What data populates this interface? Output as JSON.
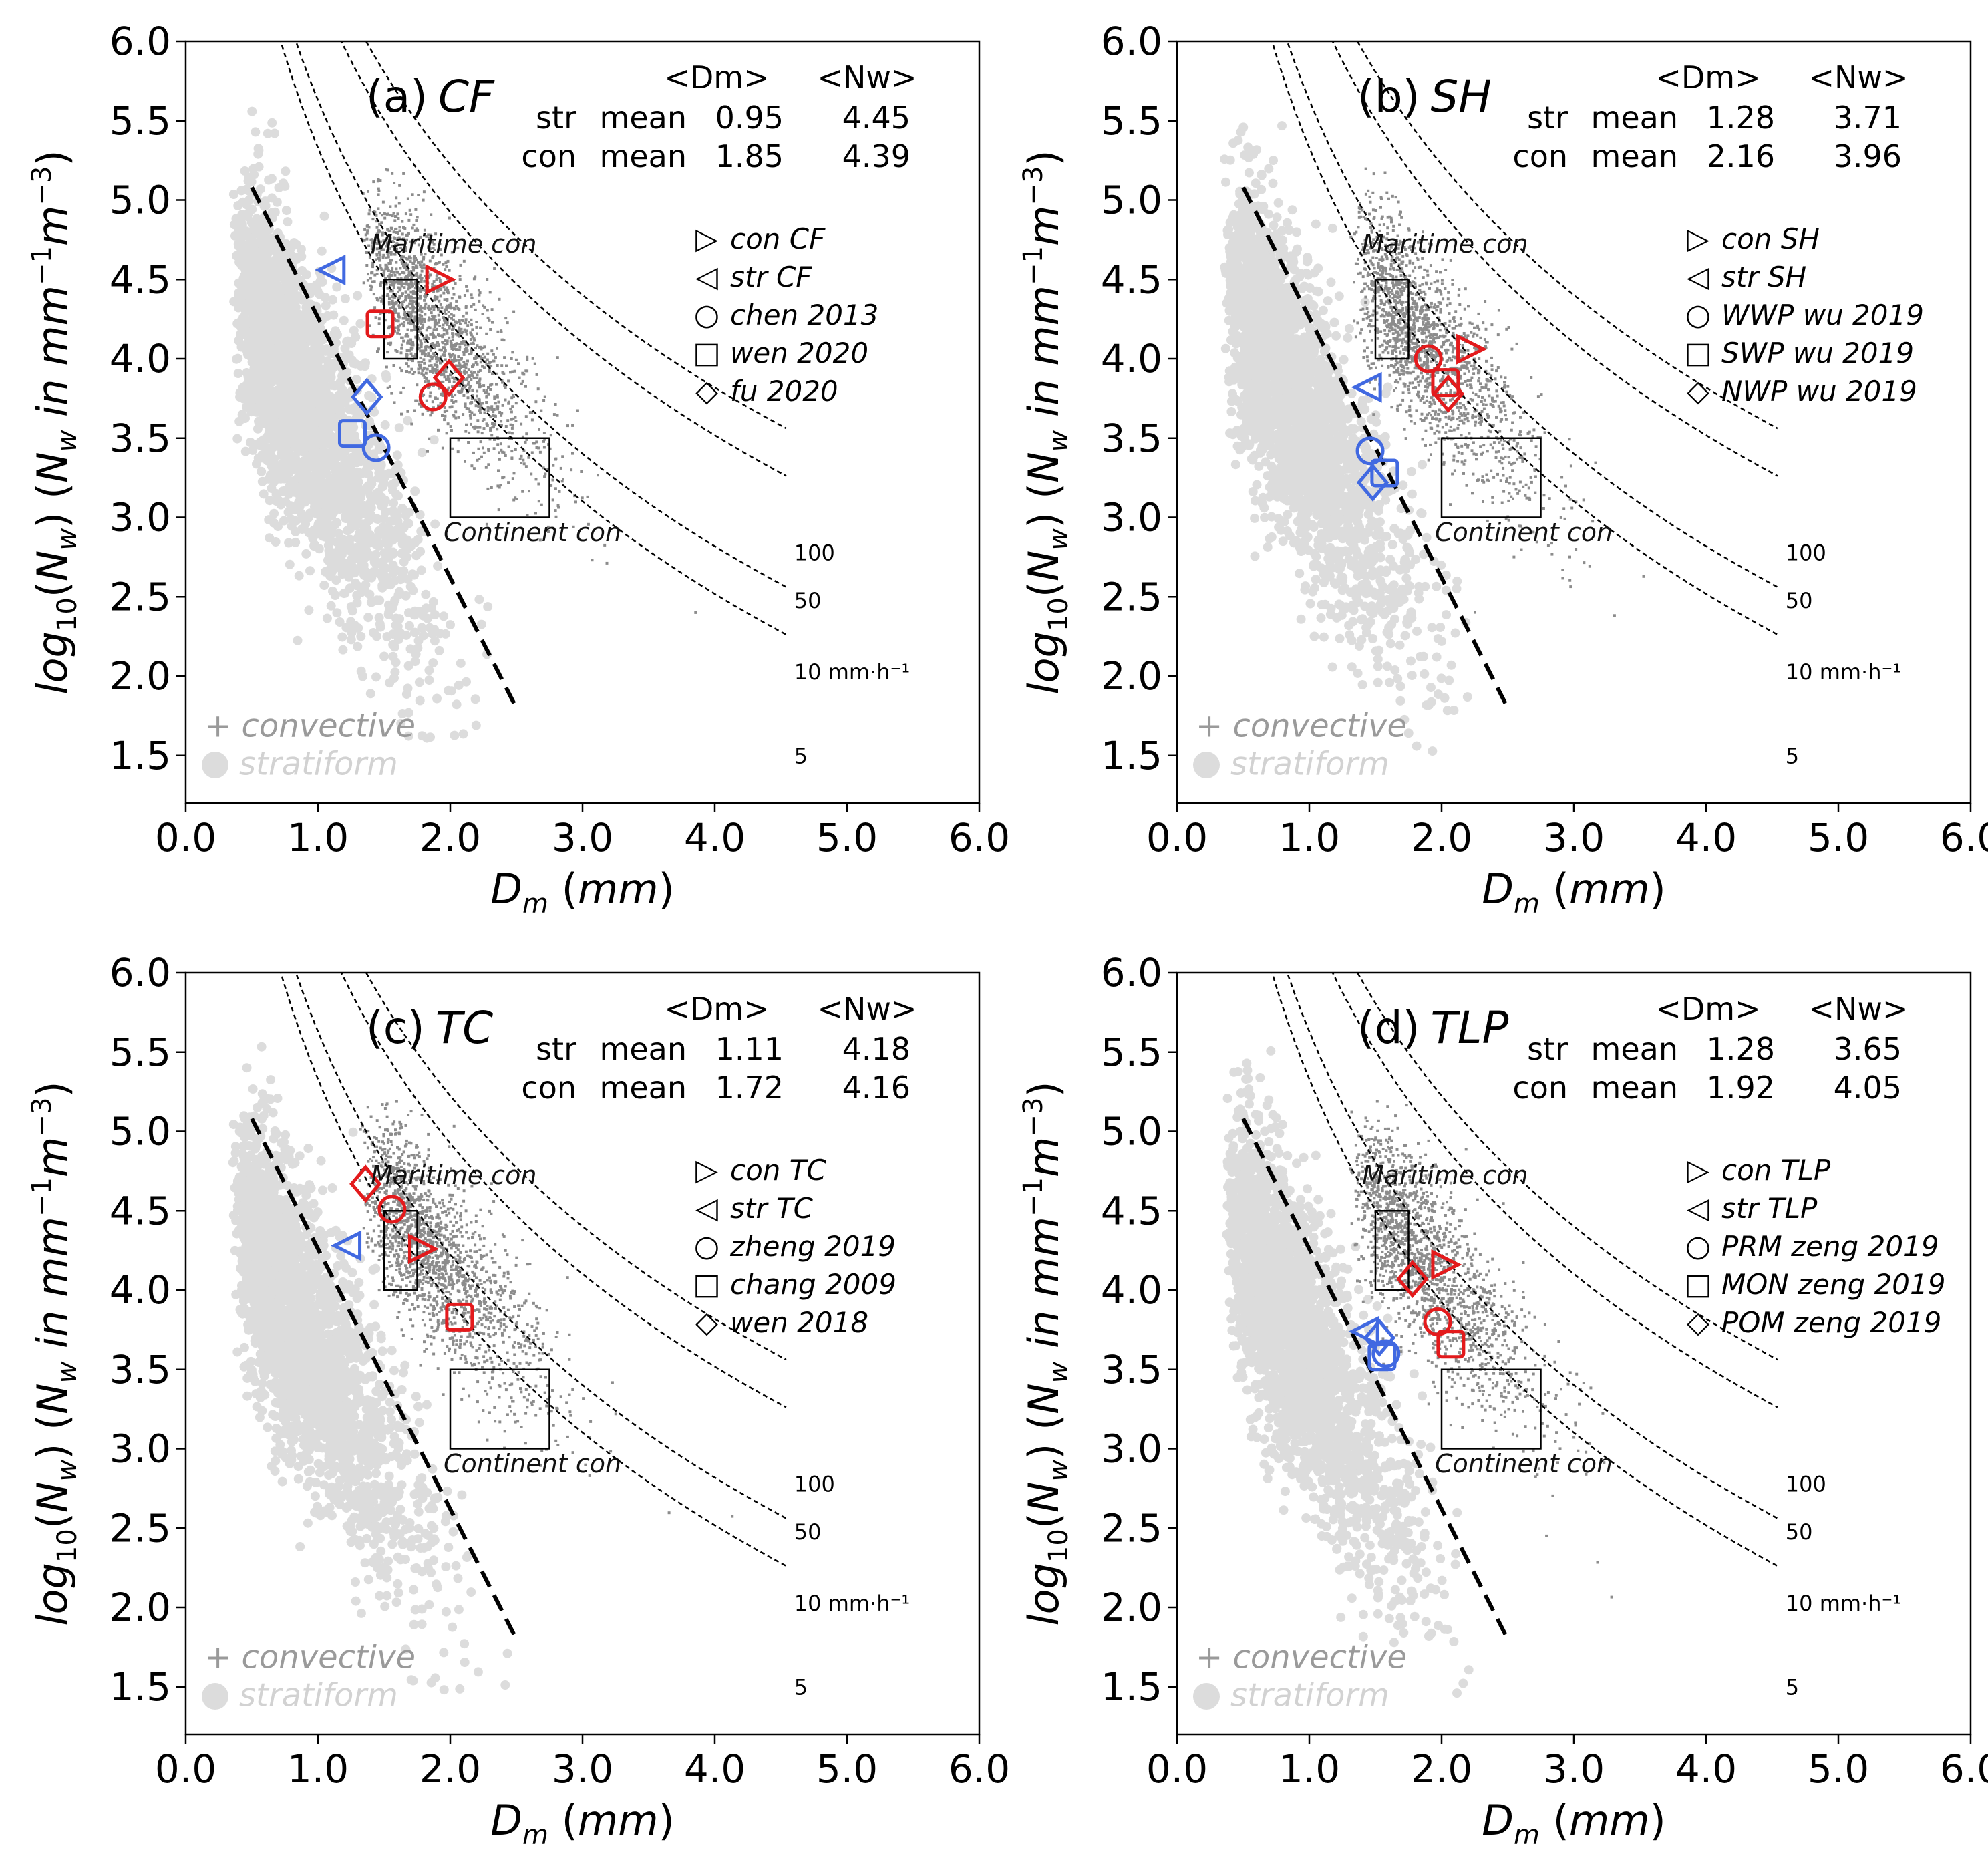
{
  "chart_data": [
    {
      "type": "scatter",
      "panel": "(a)",
      "title": "(a) CF",
      "title_label": "(a)",
      "title_name": "CF",
      "xlabel": "D_m (mm)",
      "ylabel": "log10(N_w) (N_w in mm^-1 m^-3)",
      "xlim": [
        0,
        6
      ],
      "ylim": [
        1.2,
        6.0
      ],
      "xticks": [
        "0.0",
        "1.0",
        "2.0",
        "3.0",
        "4.0",
        "5.0",
        "6.0"
      ],
      "yticks": [
        "1.5",
        "2.0",
        "2.5",
        "3.0",
        "3.5",
        "4.0",
        "4.5",
        "5.0",
        "5.5",
        "6.0"
      ],
      "stats_header": [
        "<Dm>",
        "<Nw>"
      ],
      "stats": [
        {
          "type": "str",
          "label": "mean",
          "dm": "0.95",
          "nw": "4.45"
        },
        {
          "type": "con",
          "label": "mean",
          "dm": "1.85",
          "nw": "4.39"
        }
      ],
      "legend": [
        {
          "symbol": "▷",
          "text": "con CF"
        },
        {
          "symbol": "◁",
          "text": "str  CF"
        },
        {
          "symbol": "○",
          "text": "chen 2013"
        },
        {
          "symbol": "□",
          "text": "wen 2020"
        },
        {
          "symbol": "◇",
          "text": "fu 2020"
        }
      ],
      "points": [
        {
          "marker": "triangle-right",
          "color": "#e31a1c",
          "x": 1.92,
          "y": 4.5
        },
        {
          "marker": "triangle-left",
          "color": "#4169e1",
          "x": 1.1,
          "y": 4.56
        },
        {
          "marker": "circle",
          "color": "#e31a1c",
          "x": 1.87,
          "y": 3.76
        },
        {
          "marker": "circle",
          "color": "#4169e1",
          "x": 1.44,
          "y": 3.44
        },
        {
          "marker": "square",
          "color": "#e31a1c",
          "x": 1.47,
          "y": 4.22
        },
        {
          "marker": "square",
          "color": "#4169e1",
          "x": 1.26,
          "y": 3.53
        },
        {
          "marker": "diamond",
          "color": "#e31a1c",
          "x": 1.99,
          "y": 3.88
        },
        {
          "marker": "diamond",
          "color": "#4169e1",
          "x": 1.37,
          "y": 3.76
        }
      ],
      "background": {
        "convective_label": "+ convective",
        "stratiform_label": "stratiform"
      }
    },
    {
      "type": "scatter",
      "panel": "(b)",
      "title": "(b) SH",
      "title_label": "(b)",
      "title_name": "SH",
      "xlabel": "D_m (mm)",
      "ylabel": "log10(N_w) (N_w in mm^-1 m^-3)",
      "xlim": [
        0,
        6
      ],
      "ylim": [
        1.2,
        6.0
      ],
      "xticks": [
        "0.0",
        "1.0",
        "2.0",
        "3.0",
        "4.0",
        "5.0",
        "6.0"
      ],
      "yticks": [
        "1.5",
        "2.0",
        "2.5",
        "3.0",
        "3.5",
        "4.0",
        "4.5",
        "5.0",
        "5.5",
        "6.0"
      ],
      "stats_header": [
        "<Dm>",
        "<Nw>"
      ],
      "stats": [
        {
          "type": "str",
          "label": "mean",
          "dm": "1.28",
          "nw": "3.71"
        },
        {
          "type": "con",
          "label": "mean",
          "dm": "2.16",
          "nw": "3.96"
        }
      ],
      "legend": [
        {
          "symbol": "▷",
          "text": "con SH"
        },
        {
          "symbol": "◁",
          "text": "str  SH"
        },
        {
          "symbol": "○",
          "text": "WWP wu 2019"
        },
        {
          "symbol": "□",
          "text": "SWP wu 2019"
        },
        {
          "symbol": "◇",
          "text": "NWP wu 2019"
        }
      ],
      "points": [
        {
          "marker": "triangle-right",
          "color": "#e31a1c",
          "x": 2.22,
          "y": 4.06
        },
        {
          "marker": "triangle-left",
          "color": "#4169e1",
          "x": 1.44,
          "y": 3.82
        },
        {
          "marker": "circle",
          "color": "#e31a1c",
          "x": 1.9,
          "y": 4.0
        },
        {
          "marker": "circle",
          "color": "#4169e1",
          "x": 1.46,
          "y": 3.42
        },
        {
          "marker": "square",
          "color": "#e31a1c",
          "x": 2.03,
          "y": 3.85
        },
        {
          "marker": "square",
          "color": "#4169e1",
          "x": 1.57,
          "y": 3.28
        },
        {
          "marker": "diamond",
          "color": "#e31a1c",
          "x": 2.05,
          "y": 3.78
        },
        {
          "marker": "diamond",
          "color": "#4169e1",
          "x": 1.48,
          "y": 3.22
        }
      ],
      "background": {
        "convective_label": "+ convective",
        "stratiform_label": "stratiform"
      }
    },
    {
      "type": "scatter",
      "panel": "(c)",
      "title": "(c) TC",
      "title_label": "(c)",
      "title_name": "TC",
      "xlabel": "D_m (mm)",
      "ylabel": "log10(N_w) (N_w in mm^-1 m^-3)",
      "xlim": [
        0,
        6
      ],
      "ylim": [
        1.2,
        6.0
      ],
      "xticks": [
        "0.0",
        "1.0",
        "2.0",
        "3.0",
        "4.0",
        "5.0",
        "6.0"
      ],
      "yticks": [
        "1.5",
        "2.0",
        "2.5",
        "3.0",
        "3.5",
        "4.0",
        "4.5",
        "5.0",
        "5.5",
        "6.0"
      ],
      "stats_header": [
        "<Dm>",
        "<Nw>"
      ],
      "stats": [
        {
          "type": "str",
          "label": "mean",
          "dm": "1.11",
          "nw": "4.18"
        },
        {
          "type": "con",
          "label": "mean",
          "dm": "1.72",
          "nw": "4.16"
        }
      ],
      "legend": [
        {
          "symbol": "▷",
          "text": "con TC"
        },
        {
          "symbol": "◁",
          "text": "str  TC"
        },
        {
          "symbol": "○",
          "text": "zheng 2019"
        },
        {
          "symbol": "□",
          "text": "chang 2009"
        },
        {
          "symbol": "◇",
          "text": "wen 2018"
        }
      ],
      "points": [
        {
          "marker": "triangle-right",
          "color": "#e31a1c",
          "x": 1.79,
          "y": 4.26
        },
        {
          "marker": "triangle-left",
          "color": "#4169e1",
          "x": 1.22,
          "y": 4.28
        },
        {
          "marker": "circle",
          "color": "#e31a1c",
          "x": 1.56,
          "y": 4.51
        },
        {
          "marker": "square",
          "color": "#e31a1c",
          "x": 2.07,
          "y": 3.83
        },
        {
          "marker": "diamond",
          "color": "#e31a1c",
          "x": 1.36,
          "y": 4.67
        }
      ],
      "background": {
        "convective_label": "+ convective",
        "stratiform_label": "stratiform"
      }
    },
    {
      "type": "scatter",
      "panel": "(d)",
      "title": "(d) TLP",
      "title_label": "(d)",
      "title_name": "TLP",
      "xlabel": "D_m (mm)",
      "ylabel": "log10(N_w) (N_w in mm^-1 m^-3)",
      "xlim": [
        0,
        6
      ],
      "ylim": [
        1.2,
        6.0
      ],
      "xticks": [
        "0.0",
        "1.0",
        "2.0",
        "3.0",
        "4.0",
        "5.0",
        "6.0"
      ],
      "yticks": [
        "1.5",
        "2.0",
        "2.5",
        "3.0",
        "3.5",
        "4.0",
        "4.5",
        "5.0",
        "5.5",
        "6.0"
      ],
      "stats_header": [
        "<Dm>",
        "<Nw>"
      ],
      "stats": [
        {
          "type": "str",
          "label": "mean",
          "dm": "1.28",
          "nw": "3.65"
        },
        {
          "type": "con",
          "label": "mean",
          "dm": "1.92",
          "nw": "4.05"
        }
      ],
      "legend": [
        {
          "symbol": "▷",
          "text": "con TLP"
        },
        {
          "symbol": "◁",
          "text": "str  TLP"
        },
        {
          "symbol": "○",
          "text": "PRM zeng 2019"
        },
        {
          "symbol": "□",
          "text": "MON zeng 2019"
        },
        {
          "symbol": "◇",
          "text": "POM zeng 2019"
        }
      ],
      "points": [
        {
          "marker": "triangle-right",
          "color": "#e31a1c",
          "x": 2.03,
          "y": 4.16
        },
        {
          "marker": "triangle-left",
          "color": "#4169e1",
          "x": 1.42,
          "y": 3.74
        },
        {
          "marker": "circle",
          "color": "#e31a1c",
          "x": 1.97,
          "y": 3.8
        },
        {
          "marker": "circle",
          "color": "#4169e1",
          "x": 1.58,
          "y": 3.6
        },
        {
          "marker": "square",
          "color": "#e31a1c",
          "x": 2.07,
          "y": 3.66
        },
        {
          "marker": "square",
          "color": "#4169e1",
          "x": 1.55,
          "y": 3.58
        },
        {
          "marker": "diamond",
          "color": "#e31a1c",
          "x": 1.78,
          "y": 4.07
        },
        {
          "marker": "diamond",
          "color": "#4169e1",
          "x": 1.53,
          "y": 3.7
        }
      ],
      "background": {
        "convective_label": "+ convective",
        "stratiform_label": "stratiform"
      }
    }
  ],
  "shared": {
    "rain_rate_curves": [
      {
        "label": "100",
        "rate": 100
      },
      {
        "label": "50",
        "rate": 50
      },
      {
        "label": "10 mm·h⁻¹",
        "rate": 10
      },
      {
        "label": "5",
        "rate": 5
      }
    ],
    "separation_line": {
      "x": [
        0.5,
        2.5
      ],
      "y": [
        5.08,
        1.8
      ]
    },
    "maritime_box": {
      "label": "Maritime con",
      "dm": [
        1.5,
        1.75
      ],
      "nw": [
        4.0,
        4.5
      ]
    },
    "continental_box": {
      "label": "Continent con",
      "dm": [
        2.0,
        2.75
      ],
      "nw": [
        3.0,
        3.5
      ]
    },
    "colors": {
      "red": "#e31a1c",
      "blue": "#4169e1",
      "stratiform": "#dcdcdc",
      "convective": "#8c8c8c"
    }
  }
}
